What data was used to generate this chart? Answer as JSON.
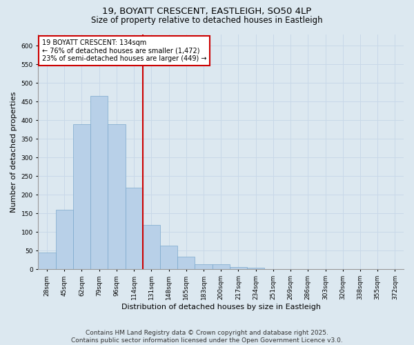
{
  "title": "19, BOYATT CRESCENT, EASTLEIGH, SO50 4LP",
  "subtitle": "Size of property relative to detached houses in Eastleigh",
  "xlabel": "Distribution of detached houses by size in Eastleigh",
  "ylabel": "Number of detached properties",
  "categories": [
    "28sqm",
    "45sqm",
    "62sqm",
    "79sqm",
    "96sqm",
    "114sqm",
    "131sqm",
    "148sqm",
    "165sqm",
    "183sqm",
    "200sqm",
    "217sqm",
    "234sqm",
    "251sqm",
    "269sqm",
    "286sqm",
    "303sqm",
    "320sqm",
    "338sqm",
    "355sqm",
    "372sqm"
  ],
  "values": [
    45,
    160,
    390,
    465,
    390,
    220,
    120,
    63,
    35,
    13,
    13,
    7,
    5,
    0,
    0,
    0,
    0,
    0,
    0,
    0,
    0
  ],
  "bar_color": "#b8d0e8",
  "bar_edge_color": "#7aa8cc",
  "bar_edge_width": 0.5,
  "grid_color": "#c8d8e8",
  "background_color": "#dce8f0",
  "vline_x": 6.0,
  "vline_color": "#cc0000",
  "annotation_text": "19 BOYATT CRESCENT: 134sqm\n← 76% of detached houses are smaller (1,472)\n23% of semi-detached houses are larger (449) →",
  "annotation_box_color": "#ffffff",
  "annotation_box_edge": "#cc0000",
  "ylim": [
    0,
    630
  ],
  "yticks": [
    0,
    50,
    100,
    150,
    200,
    250,
    300,
    350,
    400,
    450,
    500,
    550,
    600
  ],
  "footer": "Contains HM Land Registry data © Crown copyright and database right 2025.\nContains public sector information licensed under the Open Government Licence v3.0.",
  "title_fontsize": 9.5,
  "subtitle_fontsize": 8.5,
  "label_fontsize": 8,
  "tick_fontsize": 6.5,
  "annotation_fontsize": 7,
  "footer_fontsize": 6.5
}
